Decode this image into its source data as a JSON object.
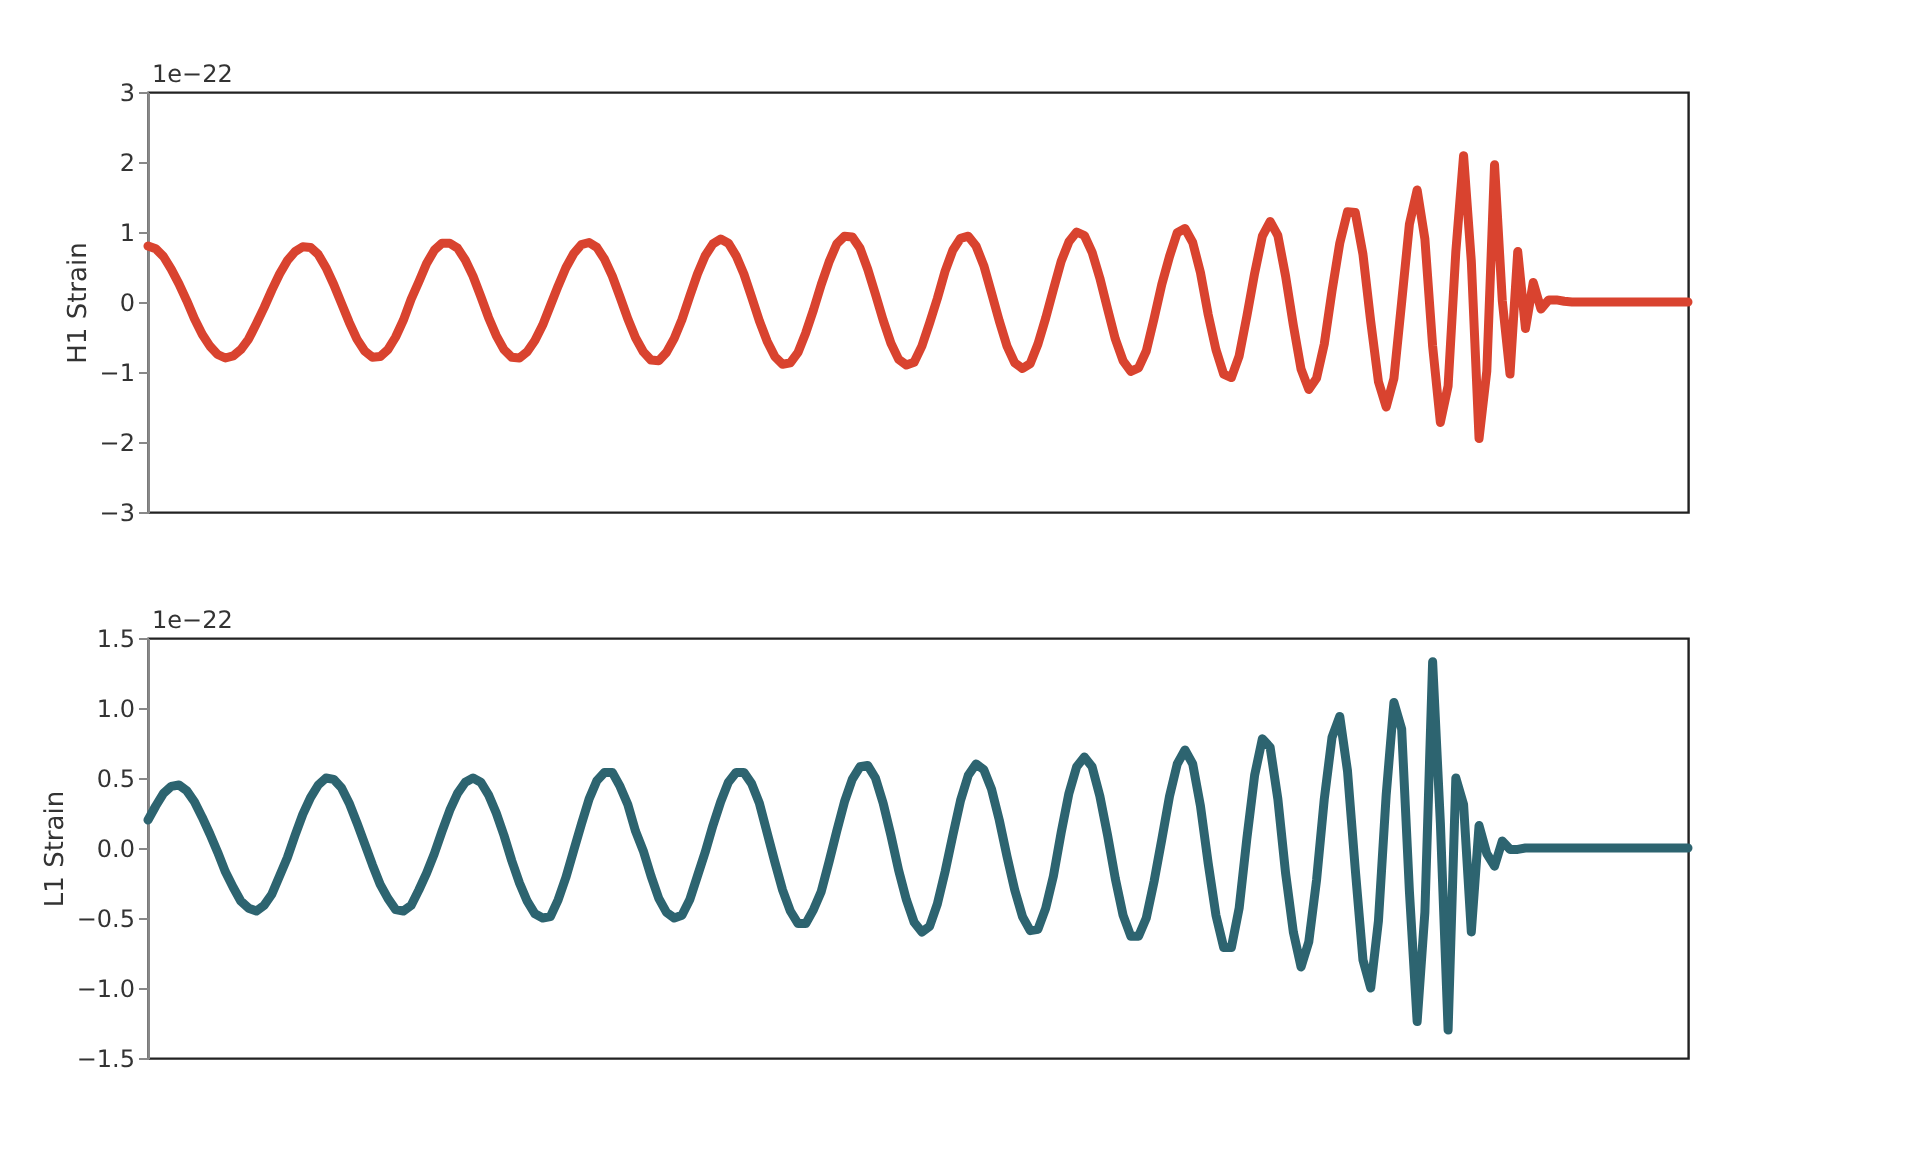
{
  "chart_data": [
    {
      "type": "line",
      "ylabel": "H1 Strain",
      "annotations": [
        "1e−22"
      ],
      "tick_labels": "y",
      "grid": false,
      "marker": "none",
      "line_style": "solid",
      "categories": [
        null,
        null,
        null,
        null,
        null,
        null,
        null,
        null,
        null,
        null,
        null,
        null,
        null,
        null,
        null,
        null,
        null,
        null,
        null,
        null,
        null,
        null,
        null,
        null,
        null,
        null,
        null,
        null,
        null,
        null,
        null,
        null,
        null,
        null,
        null,
        null,
        null,
        null,
        null,
        null,
        null,
        null,
        null,
        null,
        null,
        null,
        null,
        null,
        null,
        null,
        null,
        null,
        null,
        null,
        null,
        null,
        null,
        null,
        null,
        null,
        null,
        null,
        null,
        null,
        null,
        null,
        null,
        null,
        null,
        null,
        null,
        null,
        null,
        null,
        null,
        null,
        null,
        null,
        null,
        null,
        null,
        null,
        null,
        null,
        null,
        null,
        null,
        null,
        null,
        null,
        null,
        null,
        null,
        null,
        null,
        null,
        null,
        null,
        null,
        null,
        null,
        null,
        null,
        null,
        null,
        null,
        null,
        null,
        null,
        null,
        null,
        null,
        null,
        null,
        null,
        null,
        null,
        null,
        null,
        null,
        null,
        null,
        null,
        null,
        null,
        null,
        null,
        null,
        null,
        null,
        null,
        null,
        null,
        null,
        null,
        null,
        null,
        null,
        null,
        null,
        null,
        null,
        null,
        null,
        null,
        null,
        null,
        null,
        null,
        null,
        null,
        null,
        null,
        null,
        null,
        null,
        null,
        null,
        null,
        null,
        null,
        null,
        null,
        null,
        null,
        null,
        null,
        null,
        null,
        null,
        null,
        null,
        null,
        null,
        null,
        null,
        null,
        null,
        null,
        null,
        null,
        null,
        null,
        null,
        null,
        null,
        null,
        null,
        null,
        null,
        null,
        null,
        null,
        null,
        null,
        null,
        null,
        null,
        null,
        null
      ],
      "ylim": [
        -3,
        3
      ],
      "yticks": [
        {
          "value": -3,
          "label": "−3"
        },
        {
          "value": -2,
          "label": "−2"
        },
        {
          "value": -1,
          "label": "−1"
        },
        0,
        1,
        2,
        3
      ],
      "series": [
        {
          "color": "#d9432f",
          "values": [
            0.8,
            0.76,
            0.65,
            0.47,
            0.26,
            0.02,
            -0.24,
            -0.46,
            -0.63,
            -0.75,
            -0.8,
            -0.77,
            -0.68,
            -0.53,
            -0.31,
            -0.08,
            0.17,
            0.4,
            0.59,
            0.72,
            0.79,
            0.78,
            0.68,
            0.49,
            0.25,
            -0.02,
            -0.29,
            -0.53,
            -0.7,
            -0.79,
            -0.78,
            -0.68,
            -0.5,
            -0.26,
            0.04,
            0.29,
            0.55,
            0.74,
            0.84,
            0.84,
            0.77,
            0.6,
            0.37,
            0.08,
            -0.22,
            -0.48,
            -0.68,
            -0.79,
            -0.8,
            -0.71,
            -0.55,
            -0.33,
            -0.05,
            0.23,
            0.49,
            0.69,
            0.82,
            0.85,
            0.78,
            0.61,
            0.37,
            0.07,
            -0.24,
            -0.51,
            -0.71,
            -0.83,
            -0.84,
            -0.72,
            -0.52,
            -0.25,
            0.08,
            0.4,
            0.66,
            0.83,
            0.9,
            0.84,
            0.66,
            0.4,
            0.07,
            -0.27,
            -0.56,
            -0.78,
            -0.89,
            -0.87,
            -0.72,
            -0.44,
            -0.11,
            0.25,
            0.57,
            0.83,
            0.94,
            0.93,
            0.77,
            0.47,
            0.11,
            -0.26,
            -0.59,
            -0.82,
            -0.9,
            -0.86,
            -0.63,
            -0.3,
            0.05,
            0.44,
            0.74,
            0.91,
            0.94,
            0.8,
            0.52,
            0.13,
            -0.27,
            -0.63,
            -0.87,
            -0.95,
            -0.88,
            -0.6,
            -0.23,
            0.18,
            0.58,
            0.86,
            1.0,
            0.95,
            0.71,
            0.34,
            -0.1,
            -0.53,
            -0.84,
            -0.99,
            -0.94,
            -0.7,
            -0.24,
            0.25,
            0.65,
            0.99,
            1.05,
            0.85,
            0.42,
            -0.18,
            -0.68,
            -1.03,
            -1.08,
            -0.77,
            -0.2,
            0.41,
            0.94,
            1.15,
            0.95,
            0.37,
            -0.33,
            -0.96,
            -1.25,
            -1.09,
            -0.6,
            0.16,
            0.84,
            1.29,
            1.28,
            0.68,
            -0.28,
            -1.14,
            -1.5,
            -1.09,
            0.0,
            1.11,
            1.6,
            0.9,
            -0.63,
            -1.72,
            -1.2,
            0.72,
            2.09,
            0.58,
            -1.95,
            -0.99,
            1.96,
            0.02,
            -1.03,
            0.72,
            -0.38,
            0.28,
            -0.1,
            0.03,
            0.03,
            0.01,
            0,
            0,
            0,
            0,
            0,
            0,
            0,
            0,
            0,
            0,
            0,
            0,
            0,
            0,
            0,
            0
          ]
        }
      ]
    },
    {
      "type": "line",
      "ylabel": "L1 Strain",
      "annotations": [
        "1e−22"
      ],
      "tick_labels": "y",
      "grid": false,
      "marker": "none",
      "line_style": "solid",
      "categories": [
        null,
        null,
        null,
        null,
        null,
        null,
        null,
        null,
        null,
        null,
        null,
        null,
        null,
        null,
        null,
        null,
        null,
        null,
        null,
        null,
        null,
        null,
        null,
        null,
        null,
        null,
        null,
        null,
        null,
        null,
        null,
        null,
        null,
        null,
        null,
        null,
        null,
        null,
        null,
        null,
        null,
        null,
        null,
        null,
        null,
        null,
        null,
        null,
        null,
        null,
        null,
        null,
        null,
        null,
        null,
        null,
        null,
        null,
        null,
        null,
        null,
        null,
        null,
        null,
        null,
        null,
        null,
        null,
        null,
        null,
        null,
        null,
        null,
        null,
        null,
        null,
        null,
        null,
        null,
        null,
        null,
        null,
        null,
        null,
        null,
        null,
        null,
        null,
        null,
        null,
        null,
        null,
        null,
        null,
        null,
        null,
        null,
        null,
        null,
        null,
        null,
        null,
        null,
        null,
        null,
        null,
        null,
        null,
        null,
        null,
        null,
        null,
        null,
        null,
        null,
        null,
        null,
        null,
        null,
        null,
        null,
        null,
        null,
        null,
        null,
        null,
        null,
        null,
        null,
        null,
        null,
        null,
        null,
        null,
        null,
        null,
        null,
        null,
        null,
        null,
        null,
        null,
        null,
        null,
        null,
        null,
        null,
        null,
        null,
        null,
        null,
        null,
        null,
        null,
        null,
        null,
        null,
        null,
        null,
        null,
        null,
        null,
        null,
        null,
        null,
        null,
        null,
        null,
        null,
        null,
        null,
        null,
        null,
        null,
        null,
        null,
        null,
        null,
        null,
        null,
        null,
        null,
        null,
        null,
        null,
        null,
        null,
        null,
        null,
        null,
        null,
        null,
        null,
        null,
        null,
        null,
        null,
        null,
        null,
        null
      ],
      "ylim": [
        -1.5,
        1.5
      ],
      "yticks": [
        {
          "value": -1.5,
          "label": "−1.5"
        },
        {
          "value": -1.0,
          "label": "−1.0"
        },
        {
          "value": -0.5,
          "label": "−0.5"
        },
        {
          "value": 0,
          "label": "0.0"
        },
        0.5,
        {
          "value": 1.0,
          "label": "1.0"
        },
        1.5
      ],
      "series": [
        {
          "color": "#2d6470",
          "values": [
            0.2,
            0.3,
            0.39,
            0.44,
            0.45,
            0.41,
            0.33,
            0.22,
            0.1,
            -0.03,
            -0.17,
            -0.28,
            -0.38,
            -0.43,
            -0.45,
            -0.41,
            -0.33,
            -0.2,
            -0.07,
            0.09,
            0.24,
            0.36,
            0.45,
            0.5,
            0.49,
            0.43,
            0.32,
            0.18,
            0.03,
            -0.12,
            -0.26,
            -0.36,
            -0.44,
            -0.45,
            -0.41,
            -0.3,
            -0.18,
            -0.04,
            0.12,
            0.27,
            0.39,
            0.47,
            0.5,
            0.47,
            0.38,
            0.25,
            0.09,
            -0.09,
            -0.25,
            -0.38,
            -0.47,
            -0.5,
            -0.49,
            -0.37,
            -0.21,
            -0.02,
            0.17,
            0.35,
            0.48,
            0.54,
            0.54,
            0.44,
            0.31,
            0.12,
            -0.02,
            -0.2,
            -0.36,
            -0.46,
            -0.5,
            -0.48,
            -0.37,
            -0.2,
            -0.03,
            0.16,
            0.33,
            0.47,
            0.54,
            0.54,
            0.46,
            0.32,
            0.11,
            -0.1,
            -0.3,
            -0.45,
            -0.54,
            -0.54,
            -0.44,
            -0.31,
            -0.1,
            0.12,
            0.33,
            0.49,
            0.58,
            0.59,
            0.5,
            0.32,
            0.09,
            -0.16,
            -0.37,
            -0.53,
            -0.6,
            -0.56,
            -0.4,
            -0.17,
            0.09,
            0.34,
            0.52,
            0.6,
            0.56,
            0.42,
            0.2,
            -0.06,
            -0.3,
            -0.49,
            -0.59,
            -0.58,
            -0.43,
            -0.2,
            0.11,
            0.39,
            0.58,
            0.65,
            0.58,
            0.37,
            0.09,
            -0.22,
            -0.48,
            -0.63,
            -0.63,
            -0.5,
            -0.24,
            0.06,
            0.37,
            0.6,
            0.7,
            0.6,
            0.3,
            -0.11,
            -0.48,
            -0.71,
            -0.71,
            -0.43,
            0.07,
            0.52,
            0.78,
            0.72,
            0.35,
            -0.18,
            -0.6,
            -0.85,
            -0.67,
            -0.23,
            0.35,
            0.79,
            0.94,
            0.55,
            -0.15,
            -0.8,
            -1.0,
            -0.52,
            0.38,
            1.04,
            0.85,
            -0.31,
            -1.24,
            -0.46,
            1.33,
            0.18,
            -1.3,
            0.5,
            0.31,
            -0.6,
            0.16,
            -0.04,
            -0.13,
            0.05,
            -0.01,
            -0.01,
            0,
            0,
            0,
            0,
            0,
            0,
            0,
            0,
            0,
            0,
            0,
            0,
            0,
            0,
            0,
            0,
            0,
            0,
            0,
            0,
            0,
            0
          ]
        }
      ]
    }
  ]
}
